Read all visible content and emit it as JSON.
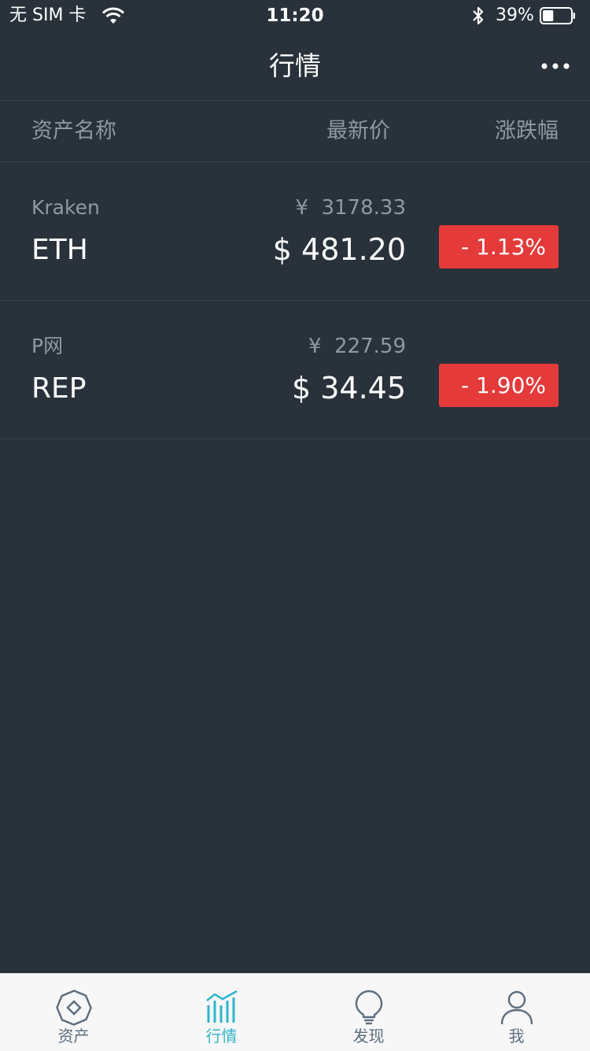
{
  "status_bar": {
    "carrier": "无 SIM 卡",
    "time": "11:20",
    "battery": "39%",
    "battery_level": 0.39
  },
  "nav": {
    "title": "行情",
    "more_icon": "more-dots-icon"
  },
  "columns": {
    "name": "资产名称",
    "price": "最新价",
    "change": "涨跌幅"
  },
  "rows": [
    {
      "exchange": "Kraken",
      "symbol": "ETH",
      "cny": "¥  3178.33",
      "usd": "$ 481.20",
      "change": "- 1.13%"
    },
    {
      "exchange": "P网",
      "symbol": "REP",
      "cny": "¥  227.59",
      "usd": "$ 34.45",
      "change": "- 1.90%"
    }
  ],
  "colors": {
    "background": "#29323a",
    "negative": "#e53a3a",
    "accent": "#2fb6cc",
    "muted": "#8e99a3"
  },
  "tabs": [
    {
      "label": "资产",
      "icon": "octagon-diamond-icon",
      "active": false
    },
    {
      "label": "行情",
      "icon": "chart-bars-icon",
      "active": true
    },
    {
      "label": "发现",
      "icon": "lightbulb-icon",
      "active": false
    },
    {
      "label": "我",
      "icon": "person-icon",
      "active": false
    }
  ]
}
